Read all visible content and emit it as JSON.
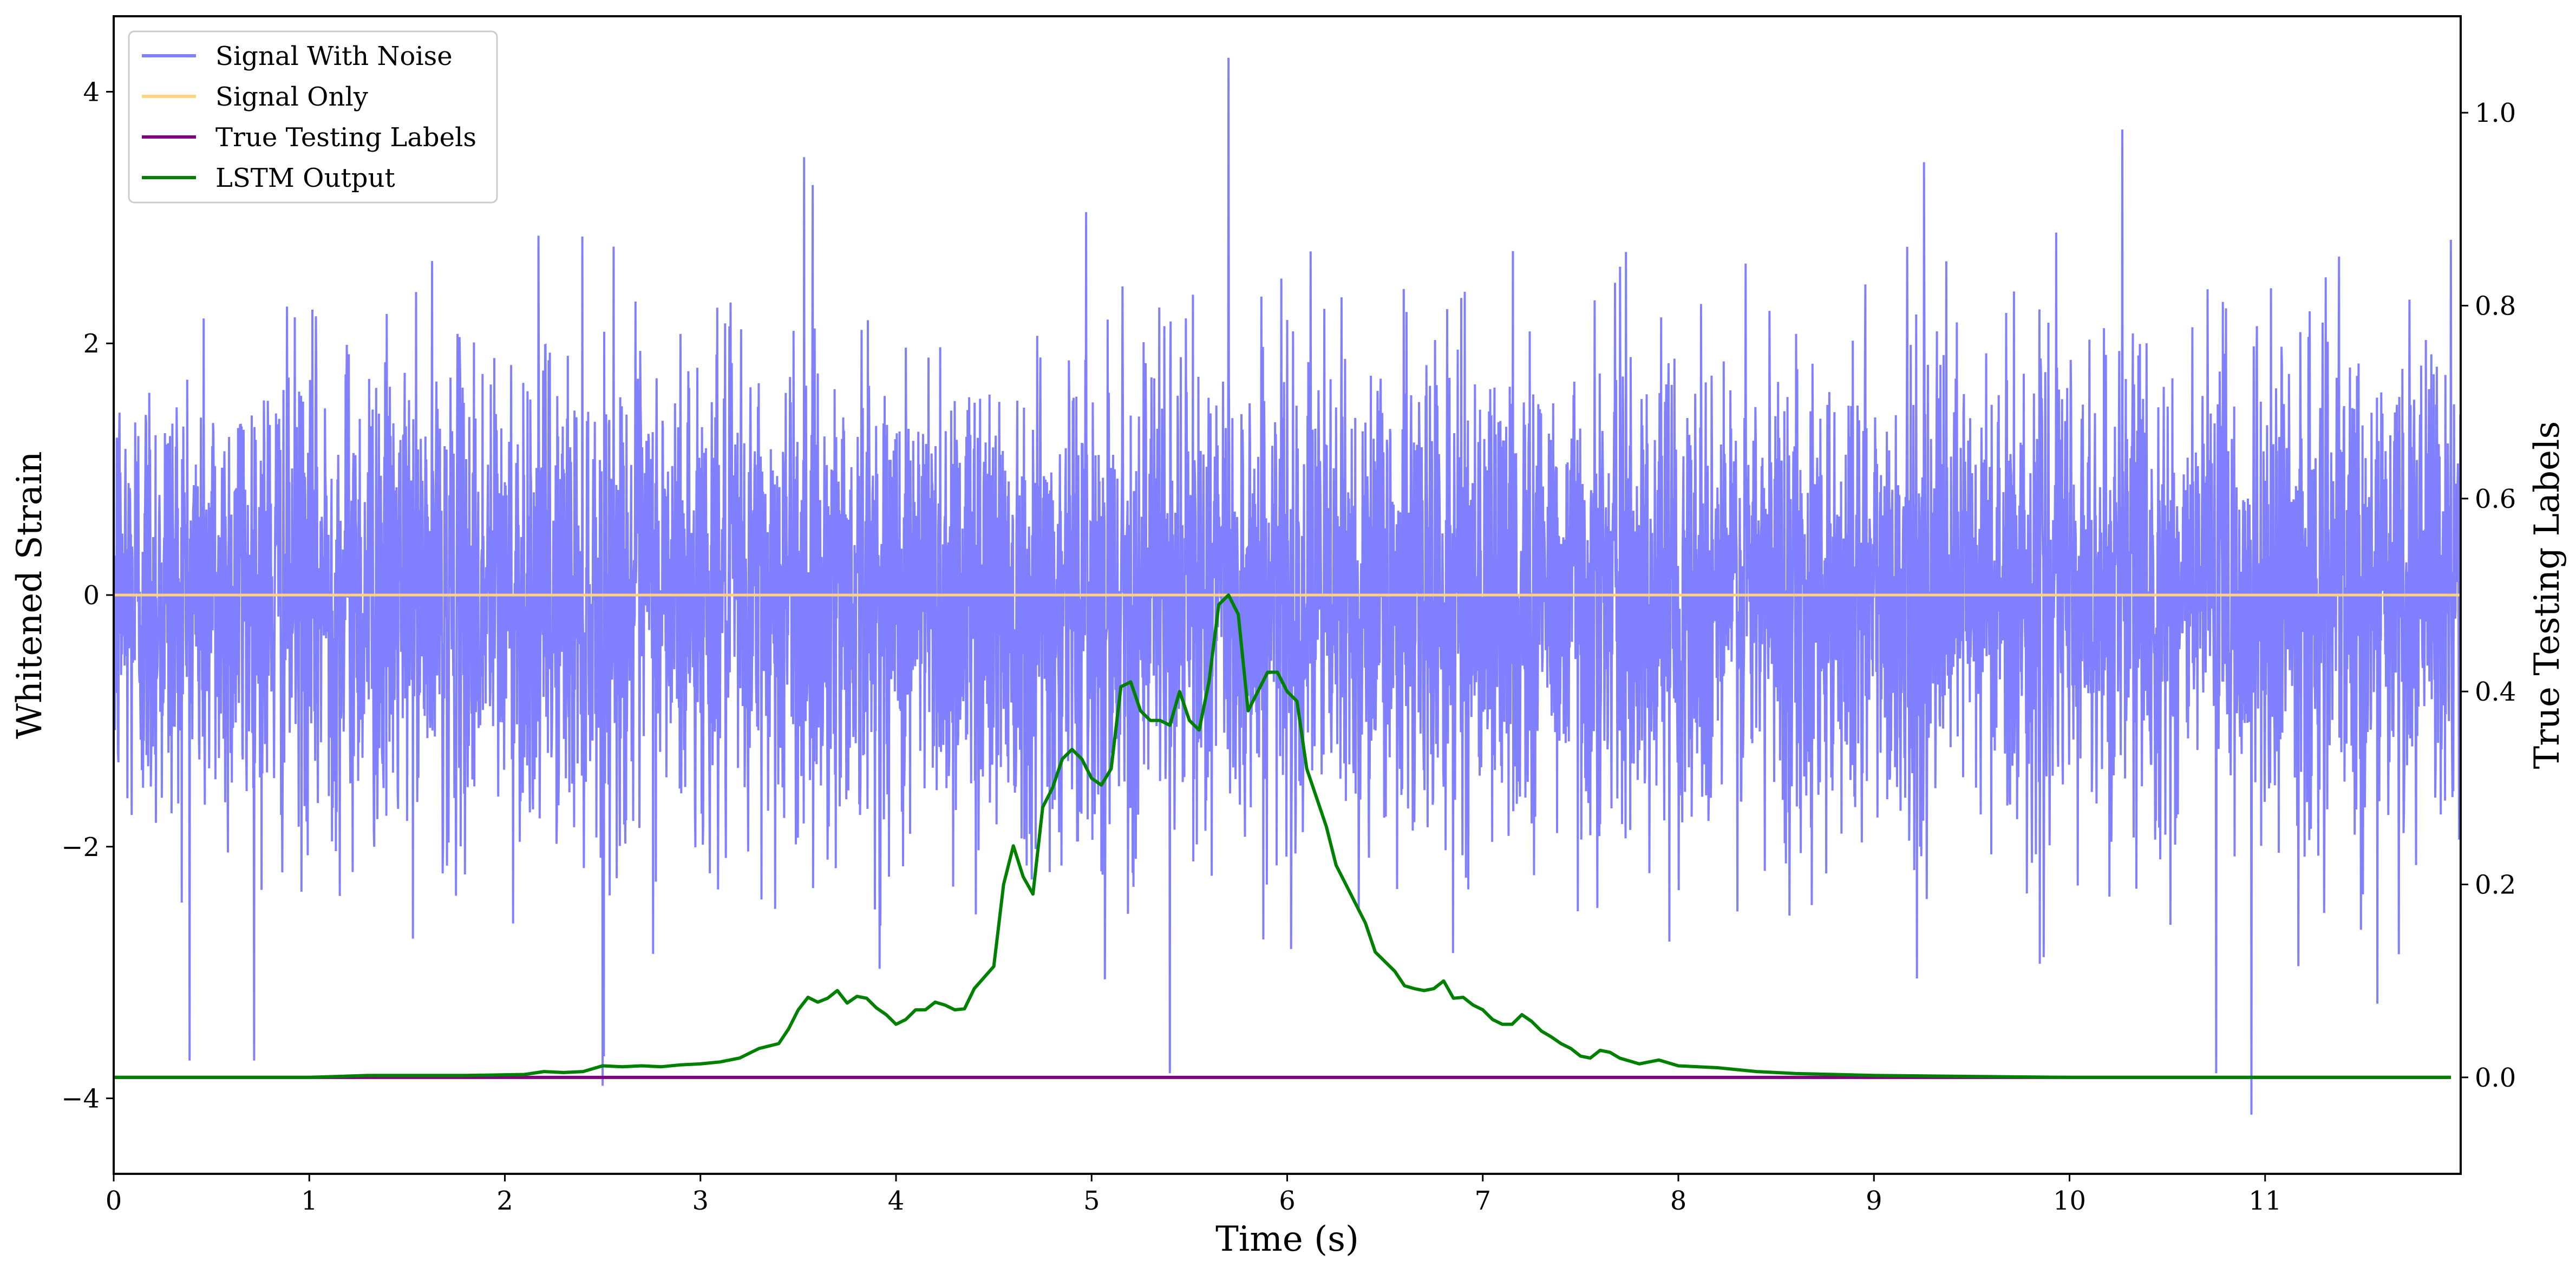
{
  "chart_data": {
    "type": "line",
    "title": "",
    "xlabel": "Time (s)",
    "ylabel": "Whitened Strain",
    "ylabel_right": "True Testing Labels",
    "xlim": [
      0,
      12
    ],
    "ylim": [
      -4.6,
      4.6
    ],
    "ylim_right": [
      -0.1,
      1.1
    ],
    "x_ticks": [
      0,
      1,
      2,
      3,
      4,
      5,
      6,
      7,
      8,
      9,
      10,
      11
    ],
    "y_ticks": [
      -4,
      -2,
      0,
      2,
      4
    ],
    "y_ticks_right": [
      0.0,
      0.2,
      0.4,
      0.6,
      0.8,
      1.0
    ],
    "y_tick_labels": [
      "−4",
      "−2",
      "0",
      "2",
      "4"
    ],
    "y_tick_labels_right": [
      "0.0",
      "0.2",
      "0.4",
      "0.6",
      "0.8",
      "1.0"
    ],
    "grid": false,
    "legend_position": "top-left",
    "legend": [
      {
        "name": "Signal With Noise",
        "color": "#8080ff"
      },
      {
        "name": "Signal Only",
        "color": "#ffd280"
      },
      {
        "name": "True Testing Labels",
        "color": "#800080"
      },
      {
        "name": "LSTM Output",
        "color": "#008000"
      }
    ],
    "series": [
      {
        "name": "Signal With Noise",
        "axis": "left",
        "color": "#8080ff",
        "description_noise": "dense zero-mean noise approximately spanning -4.1 to 4.3",
        "noise_std": 0.95,
        "peaks": [
          [
            5.7,
            4.27
          ],
          [
            10.27,
            3.7
          ],
          [
            10.93,
            -4.13
          ],
          [
            3.53,
            3.48
          ],
          [
            2.5,
            -3.9
          ],
          [
            5.4,
            -3.8
          ],
          [
            10.75,
            -3.8
          ]
        ]
      },
      {
        "name": "Signal Only",
        "axis": "left",
        "color": "#ffd280",
        "x": [
          0,
          12
        ],
        "y": [
          0,
          0
        ]
      },
      {
        "name": "True Testing Labels",
        "axis": "right",
        "color": "#800080",
        "x": [
          0,
          11.95
        ],
        "y": [
          0.0,
          0.0
        ]
      },
      {
        "name": "LSTM Output",
        "axis": "right",
        "color": "#008000",
        "x": [
          0.0,
          1.0,
          1.3,
          1.8,
          2.1,
          2.2,
          2.3,
          2.4,
          2.5,
          2.6,
          2.7,
          2.8,
          2.9,
          3.0,
          3.05,
          3.1,
          3.2,
          3.3,
          3.4,
          3.45,
          3.5,
          3.55,
          3.6,
          3.65,
          3.7,
          3.75,
          3.8,
          3.85,
          3.9,
          3.95,
          4.0,
          4.05,
          4.1,
          4.15,
          4.2,
          4.25,
          4.3,
          4.35,
          4.4,
          4.5,
          4.55,
          4.6,
          4.65,
          4.7,
          4.75,
          4.8,
          4.85,
          4.9,
          4.95,
          5.0,
          5.05,
          5.1,
          5.15,
          5.2,
          5.25,
          5.3,
          5.35,
          5.4,
          5.45,
          5.5,
          5.55,
          5.6,
          5.65,
          5.7,
          5.75,
          5.8,
          5.85,
          5.9,
          5.95,
          6.0,
          6.05,
          6.1,
          6.15,
          6.2,
          6.25,
          6.3,
          6.35,
          6.4,
          6.45,
          6.5,
          6.55,
          6.6,
          6.65,
          6.7,
          6.75,
          6.8,
          6.85,
          6.9,
          6.95,
          7.0,
          7.05,
          7.1,
          7.15,
          7.2,
          7.25,
          7.3,
          7.35,
          7.4,
          7.45,
          7.5,
          7.55,
          7.6,
          7.65,
          7.7,
          7.8,
          7.9,
          8.0,
          8.2,
          8.4,
          8.6,
          8.8,
          9.0,
          9.5,
          10.0,
          11.0,
          11.95
        ],
        "y": [
          0.0,
          0.0,
          0.002,
          0.002,
          0.003,
          0.006,
          0.005,
          0.006,
          0.012,
          0.011,
          0.012,
          0.011,
          0.013,
          0.014,
          0.015,
          0.016,
          0.02,
          0.03,
          0.035,
          0.05,
          0.07,
          0.083,
          0.078,
          0.082,
          0.09,
          0.077,
          0.084,
          0.082,
          0.072,
          0.065,
          0.055,
          0.06,
          0.07,
          0.07,
          0.078,
          0.075,
          0.07,
          0.071,
          0.092,
          0.115,
          0.2,
          0.24,
          0.208,
          0.19,
          0.28,
          0.3,
          0.33,
          0.34,
          0.33,
          0.31,
          0.303,
          0.32,
          0.405,
          0.41,
          0.38,
          0.37,
          0.37,
          0.365,
          0.4,
          0.37,
          0.36,
          0.41,
          0.49,
          0.5,
          0.48,
          0.38,
          0.4,
          0.42,
          0.42,
          0.4,
          0.39,
          0.32,
          0.29,
          0.26,
          0.22,
          0.2,
          0.18,
          0.16,
          0.13,
          0.12,
          0.11,
          0.095,
          0.092,
          0.09,
          0.092,
          0.1,
          0.082,
          0.083,
          0.075,
          0.07,
          0.06,
          0.055,
          0.055,
          0.065,
          0.058,
          0.048,
          0.042,
          0.035,
          0.03,
          0.022,
          0.02,
          0.028,
          0.026,
          0.02,
          0.014,
          0.018,
          0.012,
          0.01,
          0.006,
          0.004,
          0.003,
          0.002,
          0.001,
          0.0,
          0.0,
          0.0
        ]
      }
    ]
  }
}
